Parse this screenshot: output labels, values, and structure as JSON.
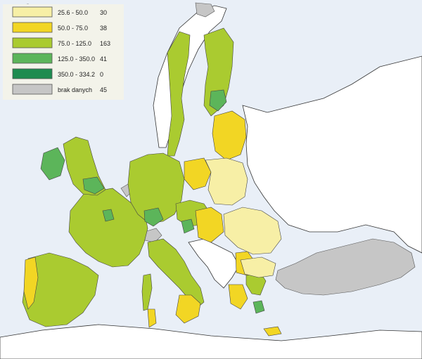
{
  "legend": {
    "items": [
      {
        "range": "25.6 - 50.0",
        "count": "30",
        "color": "#f7efa6"
      },
      {
        "range": "50.0 - 75.0",
        "count": "38",
        "color": "#f2d624"
      },
      {
        "range": "75.0 - 125.0",
        "count": "163",
        "color": "#aacb30"
      },
      {
        "range": "125.0 - 350.0",
        "count": "41",
        "color": "#5cb55a"
      },
      {
        "range": "350.0 - 334.2",
        "count": "0",
        "color": "#1e8b50"
      },
      {
        "range": "brak danych",
        "count": "45",
        "color": "#c6c6c6"
      }
    ]
  },
  "colors": {
    "sea": "#e9eff7",
    "outside_land": "#ffffff",
    "border": "#333333"
  }
}
